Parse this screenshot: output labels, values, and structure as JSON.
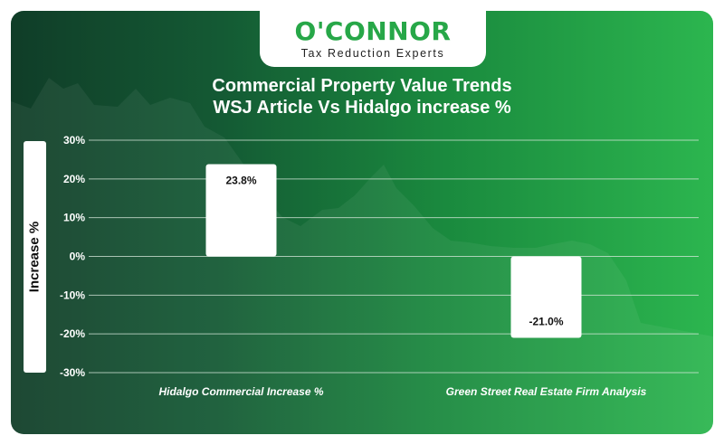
{
  "brand": {
    "name": "O'CONNOR",
    "tagline": "Tax Reduction Experts"
  },
  "colors": {
    "brand_green": "#27a748",
    "background_dark": "#103d28",
    "background_light": "#2cb64f",
    "bar_fill": "#ffffff",
    "gridline": "#d8e8dc"
  },
  "chart_data": {
    "type": "bar",
    "title": "Commercial Property Value Trends",
    "subtitle": "WSJ Article Vs Hidalgo increase %",
    "ylabel": "Increase %",
    "xlabel": "",
    "categories": [
      "Hidalgo Commercial Increase %",
      "Green Street Real Estate Firm Analysis"
    ],
    "values": [
      23.8,
      -21.0
    ],
    "value_labels": [
      "23.8%",
      "-21.0%"
    ],
    "ylim": [
      -30,
      30
    ],
    "yticks": [
      30,
      20,
      10,
      0,
      -10,
      -20,
      -30
    ],
    "ytick_labels": [
      "30%",
      "20%",
      "10%",
      "0%",
      "-10%",
      "-20%",
      "-30%"
    ],
    "grid": true,
    "legend": "none"
  }
}
